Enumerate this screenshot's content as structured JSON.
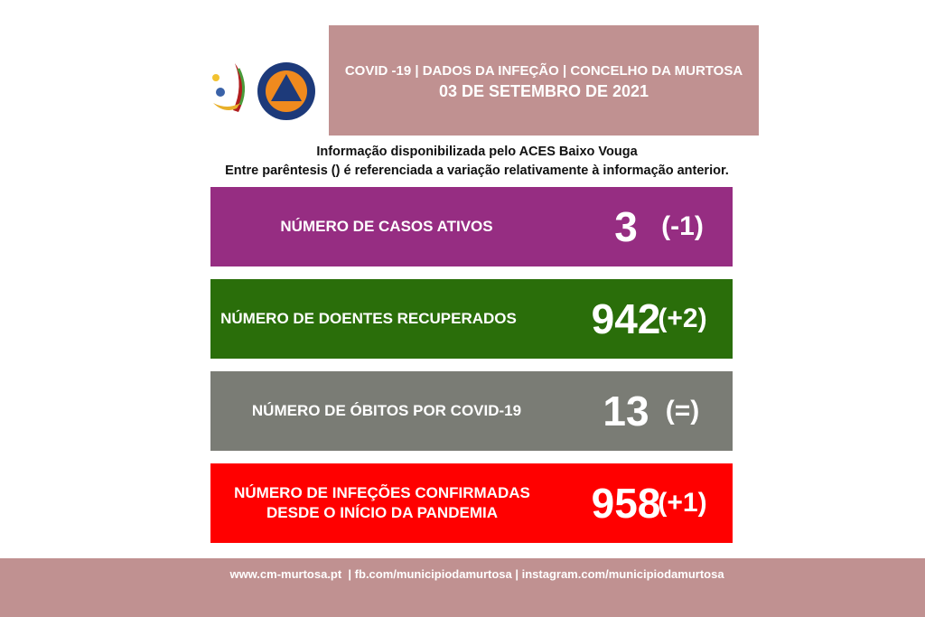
{
  "logos": {
    "municipio": "MURTOSA município",
    "protecao_civil": "PROTECÇÃO CIVIL MURTOSA"
  },
  "header": {
    "title": "COVID -19 | DADOS DA INFEÇÃO | CONCELHO DA MURTOSA",
    "date": "03 DE SETEMBRO DE 2021"
  },
  "info": {
    "line1": "Informação disponibilizada pelo ACES Baixo Vouga",
    "line2": "Entre parêntesis () é referenciada a variação relativamente à informação anterior."
  },
  "stats": [
    {
      "label": "NÚMERO DE CASOS ATIVOS",
      "value": "3",
      "variation": "(-1)",
      "color": "#962d82"
    },
    {
      "label": "NÚMERO DE DOENTES RECUPERADOS",
      "value": "942",
      "variation": "(+2)",
      "color": "#2a6e0a"
    },
    {
      "label": "NÚMERO DE ÓBITOS POR COVID-19",
      "value": "13",
      "variation": "(=)",
      "color": "#7a7c75"
    },
    {
      "label": "NÚMERO DE INFEÇÕES CONFIRMADAS DESDE O INÍCIO DA PANDEMIA",
      "value": "958",
      "variation": "(+1)",
      "color": "#ff0000"
    }
  ],
  "footer": {
    "links": "www.cm-murtosa.pt  | fb.com/municipiodamurtosa | instagram.com/municipiodamurtosa"
  },
  "colors": {
    "header": "#c09191"
  }
}
